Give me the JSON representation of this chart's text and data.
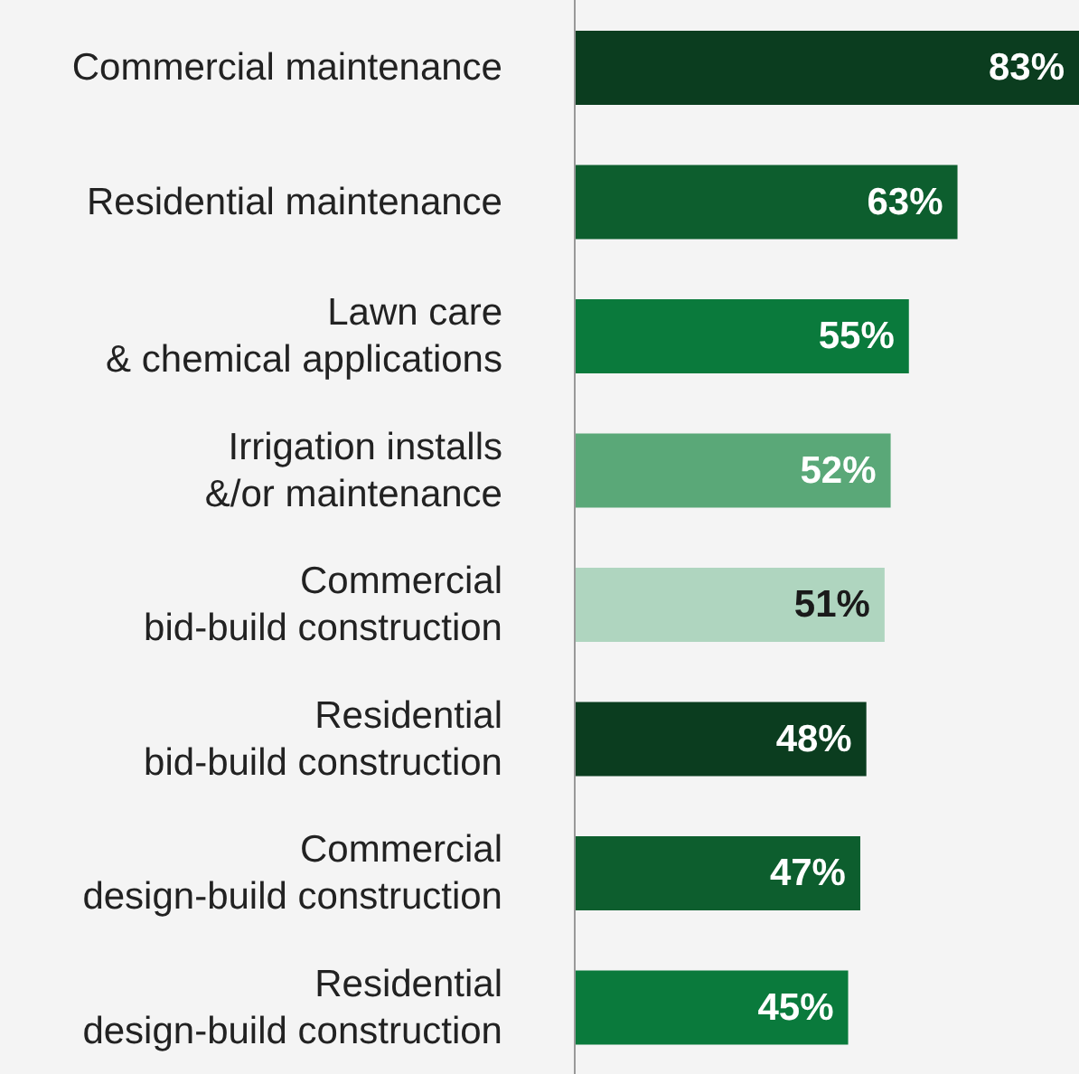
{
  "chart_data": {
    "type": "bar",
    "orientation": "horizontal",
    "categories": [
      "Commercial maintenance",
      "Residential maintenance",
      "Lawn care\n& chemical applications",
      "Irrigation installs\n&/or maintenance",
      "Commercial\nbid-build construction",
      "Residential\nbid-build construction",
      "Commercial\ndesign-build construction",
      "Residential\ndesign-build construction"
    ],
    "values": [
      83,
      63,
      55,
      52,
      51,
      48,
      47,
      45
    ],
    "value_labels": [
      "83%",
      "63%",
      "55%",
      "52%",
      "51%",
      "48%",
      "47%",
      "45%"
    ],
    "colors": [
      "#0b3d1f",
      "#0d5e2e",
      "#0a7a3c",
      "#5aa878",
      "#afd5bf",
      "#0b3d1f",
      "#0d5e2e",
      "#0a7a3c"
    ],
    "tick_labels": "y"
  }
}
